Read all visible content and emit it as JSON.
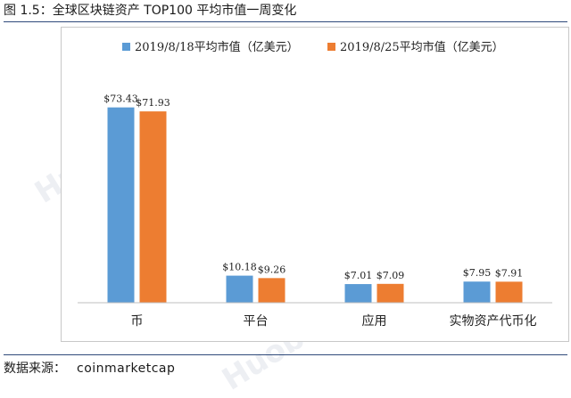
{
  "figure": {
    "title": "图 1.5：全球区块链资产 TOP100 平均市值一周变化",
    "source_label": "数据来源：",
    "source_value": "coinmarketcap"
  },
  "watermark_text": "Huobi Research",
  "colors": {
    "series1": "#5b9bd5",
    "series2": "#ed7d31",
    "rule": "#2f4a7a"
  },
  "chart_data": {
    "type": "bar",
    "title": "",
    "xlabel": "",
    "ylabel": "",
    "categories": [
      "币",
      "平台",
      "应用",
      "实物资产代币化"
    ],
    "series": [
      {
        "name": "2019/8/18平均市值（亿美元）",
        "values": [
          73.43,
          10.18,
          7.01,
          7.95
        ],
        "labels": [
          "$73.43",
          "$10.18",
          "$7.01",
          "$7.95"
        ]
      },
      {
        "name": "2019/8/25平均市值（亿美元）",
        "values": [
          71.93,
          9.26,
          7.09,
          7.91
        ],
        "labels": [
          "$71.93",
          "$9.26",
          "$7.09",
          "$7.91"
        ]
      }
    ],
    "ylim": [
      0,
      80
    ],
    "grid": false,
    "legend": "top"
  }
}
